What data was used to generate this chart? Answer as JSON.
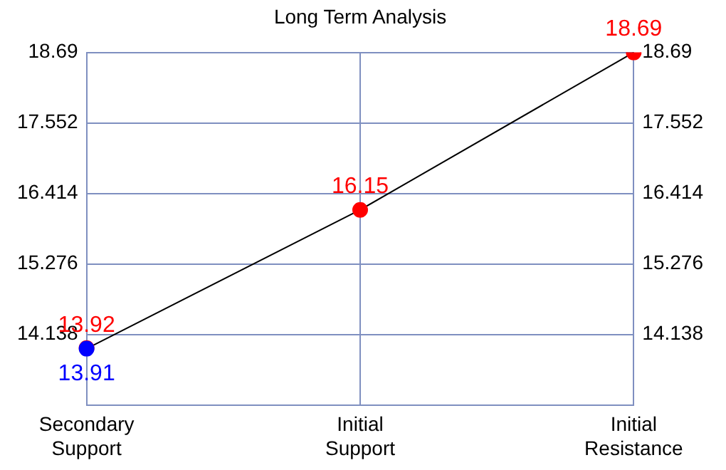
{
  "chart_data": {
    "type": "line",
    "title": "Long Term Analysis",
    "categories": [
      "Secondary\nSupport",
      "Initial\nSupport",
      "Initial\nResistance"
    ],
    "series": [
      {
        "type": "line",
        "color": "#000000",
        "marker": "none",
        "values": [
          13.91,
          16.15,
          18.69
        ]
      },
      {
        "type": "scatter",
        "color": "#ff0000",
        "marker": "circle",
        "values": [
          13.92,
          16.15,
          18.69
        ],
        "value_labels": [
          "13.92",
          "16.15",
          "18.69"
        ]
      },
      {
        "type": "scatter",
        "color": "#0000ff",
        "marker": "circle",
        "values": [
          13.91,
          null,
          null
        ],
        "value_labels": [
          "13.91",
          null,
          null
        ]
      }
    ],
    "ylim": [
      13.0,
      18.69
    ],
    "yticks": [
      14.138,
      15.276,
      16.414,
      17.552,
      18.69
    ],
    "y2lim": [
      13.0,
      18.69
    ],
    "y2ticks": [
      14.138,
      15.276,
      16.414,
      17.552,
      18.69
    ],
    "grid": true
  }
}
